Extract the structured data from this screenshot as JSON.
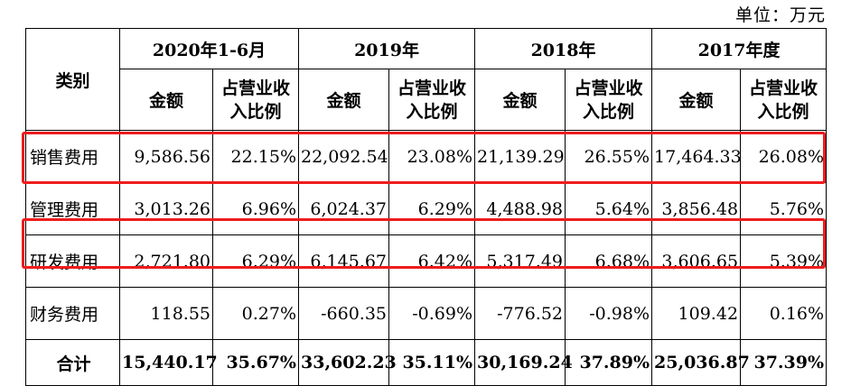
{
  "unit_label": "单位：万元",
  "header": {
    "category": "类别",
    "periods": [
      "2020年1-6月",
      "2019年",
      "2018年",
      "2017年度"
    ],
    "amount": "金额",
    "ratio_line1": "占营业收",
    "ratio_line2": "入比例"
  },
  "rows": [
    {
      "category": "销售费用",
      "values": [
        "9,586.56",
        "22.15%",
        "22,092.54",
        "23.08%",
        "21,139.29",
        "26.55%",
        "17,464.33",
        "26.08%"
      ],
      "highlighted": true
    },
    {
      "category": "管理费用",
      "values": [
        "3,013.26",
        "6.96%",
        "6,024.37",
        "6.29%",
        "4,488.98",
        "5.64%",
        "3,856.48",
        "5.76%"
      ],
      "highlighted": false
    },
    {
      "category": "研发费用",
      "values": [
        "2,721.80",
        "6.29%",
        "6,145.67",
        "6.42%",
        "5,317.49",
        "6.68%",
        "3,606.65",
        "5.39%"
      ],
      "highlighted": true
    },
    {
      "category": "财务费用",
      "values": [
        "118.55",
        "0.27%",
        "-660.35",
        "-0.69%",
        "-776.52",
        "-0.98%",
        "109.42",
        "0.16%"
      ],
      "highlighted": false
    },
    {
      "category": "合计",
      "values": [
        "15,440.17",
        "35.67%",
        "33,602.23",
        "35.11%",
        "30,169.24",
        "37.89%",
        "25,036.87",
        "37.39%"
      ],
      "highlighted": false
    }
  ],
  "highlight_color": "#ee1c1c"
}
